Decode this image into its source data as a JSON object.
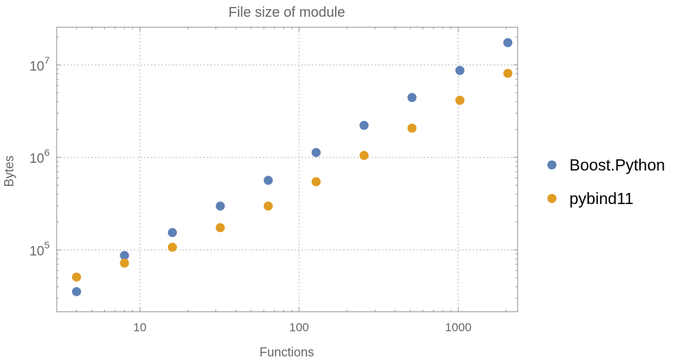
{
  "chart_data": {
    "type": "scatter",
    "title": "File size of module",
    "xlabel": "Functions",
    "ylabel": "Bytes",
    "xscale": "log",
    "yscale": "log",
    "xlim": [
      3,
      2360
    ],
    "ylim": [
      21500,
      25500000
    ],
    "grid": true,
    "legend_position": "right",
    "x_ticks": [
      {
        "value": 10,
        "label": "10"
      },
      {
        "value": 100,
        "label": "100"
      },
      {
        "value": 1000,
        "label": "1000"
      }
    ],
    "y_ticks": [
      {
        "value": 100000,
        "base": "10",
        "exp": "5"
      },
      {
        "value": 1000000,
        "base": "10",
        "exp": "6"
      },
      {
        "value": 10000000,
        "base": "10",
        "exp": "7"
      }
    ],
    "x": [
      4,
      8,
      16,
      32,
      64,
      128,
      256,
      512,
      1024,
      2048
    ],
    "series": [
      {
        "name": "Boost.Python",
        "color": "#5e81b5",
        "values": [
          35400,
          87000,
          154000,
          298000,
          565000,
          1130000,
          2220000,
          4440000,
          8700000,
          17400000
        ]
      },
      {
        "name": "pybind11",
        "color": "#e19c24",
        "values": [
          50900,
          72000,
          107000,
          174000,
          298000,
          546000,
          1050000,
          2070000,
          4140000,
          8100000
        ]
      }
    ]
  }
}
